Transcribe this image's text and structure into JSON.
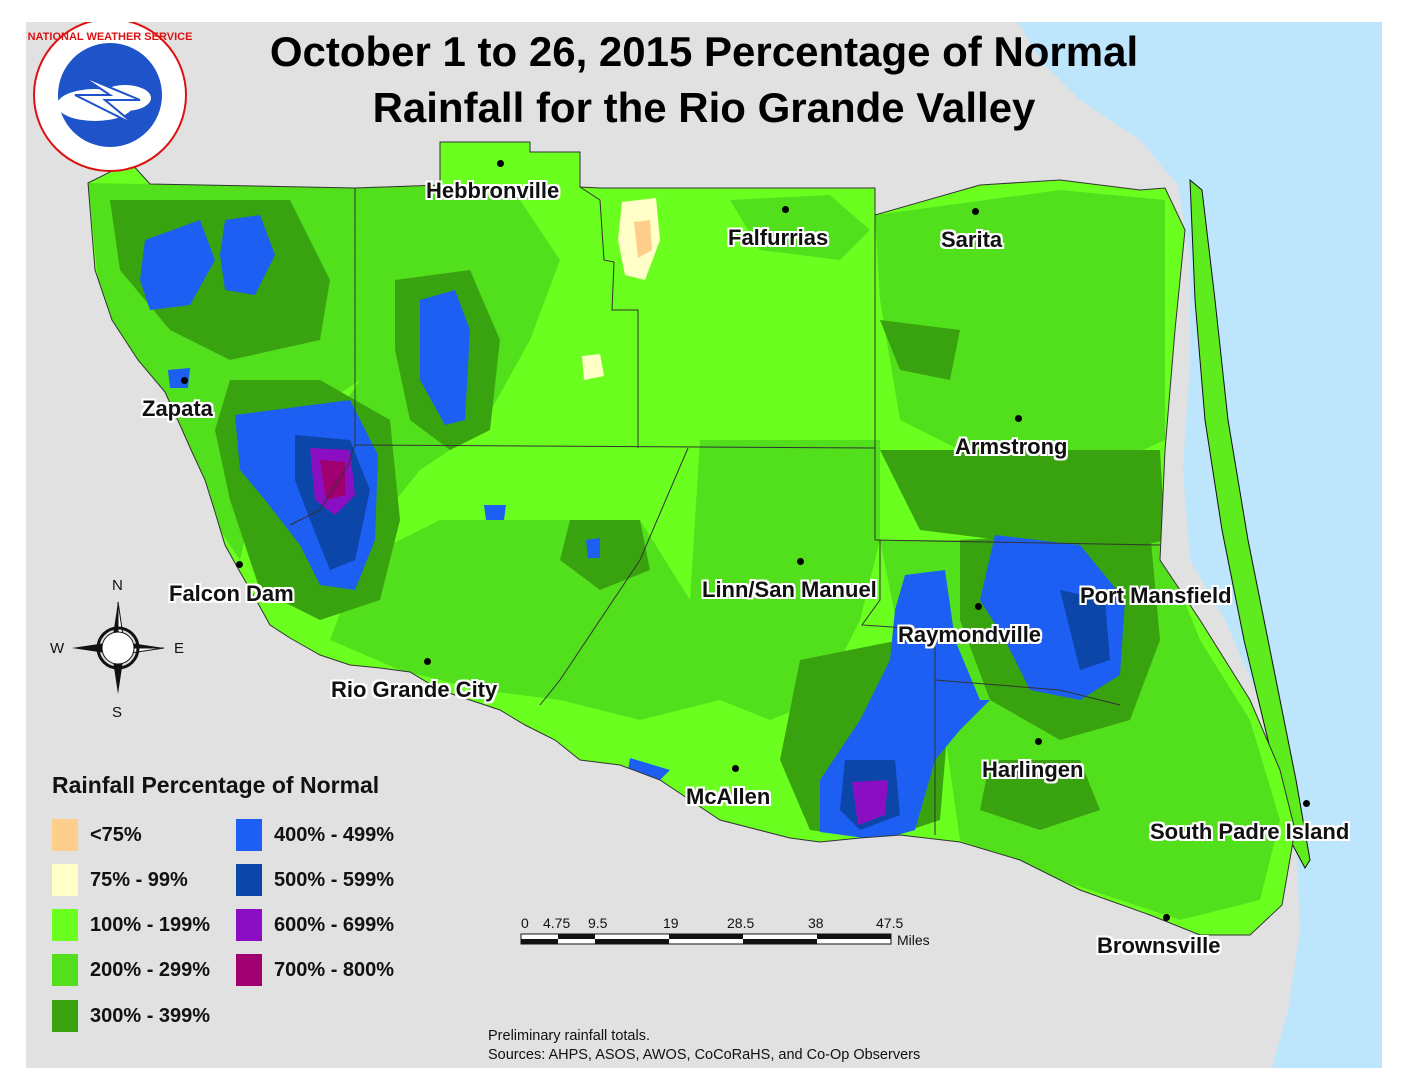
{
  "title_line1": "October 1 to 26, 2015 Percentage of Normal",
  "title_line2": "Rainfall for the Rio Grande Valley",
  "logo": {
    "text": "NATIONAL WEATHER SERVICE",
    "icon": "nws-logo"
  },
  "cities": [
    {
      "id": "hebbronville",
      "name": "Hebbronville"
    },
    {
      "id": "falfurrias",
      "name": "Falfurrias"
    },
    {
      "id": "sarita",
      "name": "Sarita"
    },
    {
      "id": "zapata",
      "name": "Zapata"
    },
    {
      "id": "armstrong",
      "name": "Armstrong"
    },
    {
      "id": "falcon-dam",
      "name": "Falcon Dam"
    },
    {
      "id": "linn-san-manuel",
      "name": "Linn/San Manuel"
    },
    {
      "id": "port-mansfield",
      "name": "Port Mansfield"
    },
    {
      "id": "raymondville",
      "name": "Raymondville"
    },
    {
      "id": "rio-grande-city",
      "name": "Rio Grande City"
    },
    {
      "id": "harlingen",
      "name": "Harlingen"
    },
    {
      "id": "mcallen",
      "name": "McAllen"
    },
    {
      "id": "south-padre-island",
      "name": "South Padre Island"
    },
    {
      "id": "brownsville",
      "name": "Brownsville"
    }
  ],
  "legend": {
    "title": "Rainfall Percentage of Normal",
    "items": [
      {
        "label": "<75%",
        "color": "#fdcf8b"
      },
      {
        "label": "75%  - 99%",
        "color": "#ffffc7"
      },
      {
        "label": "100%  - 199%",
        "color": "#6bff1f"
      },
      {
        "label": "200%  - 299%",
        "color": "#52e01c"
      },
      {
        "label": "300%  - 399%",
        "color": "#38a30f"
      },
      {
        "label": "400%  - 499%",
        "color": "#1c5ff2"
      },
      {
        "label": "500%  - 599%",
        "color": "#0c46a8"
      },
      {
        "label": "600%  - 699%",
        "color": "#8c0ec2"
      },
      {
        "label": "700%  - 800%",
        "color": "#a0006f"
      }
    ]
  },
  "compass": {
    "n": "N",
    "s": "S",
    "e": "E",
    "w": "W",
    "icon": "compass-rose-icon"
  },
  "scale_bar": {
    "labels": [
      "0",
      "4.75",
      "9.5",
      "19",
      "28.5",
      "38",
      "47.5"
    ],
    "unit": "Miles"
  },
  "notes": {
    "line1": "Preliminary rainfall totals.",
    "line2": "Sources: AHPS, ASOS, AWOS, CoCoRaHS, and Co-Op Observers"
  },
  "colors": {
    "background": "#e1e1e1",
    "water": "#bde5fb"
  }
}
